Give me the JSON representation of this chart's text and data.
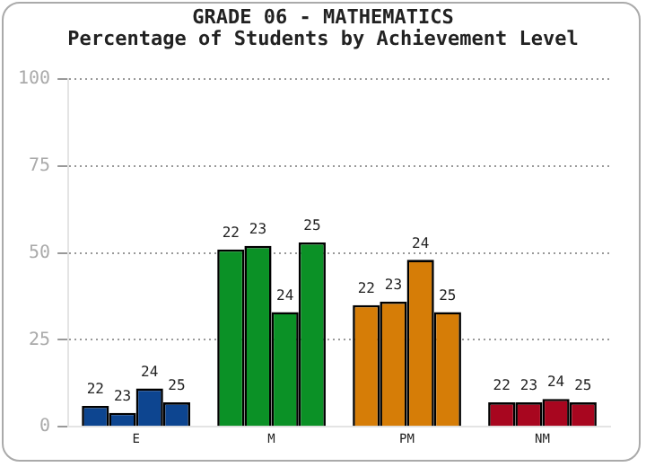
{
  "chart_data": {
    "type": "bar",
    "title": "GRADE 06 - MATHEMATICS",
    "subtitle": "Percentage of Students by Achievement Level",
    "categories": [
      "E",
      "M",
      "PM",
      "NM"
    ],
    "series": [
      {
        "name": "22",
        "colors": [
          "#0d4590",
          "#0b9126",
          "#d67d07",
          "#a8061f"
        ],
        "values": [
          6,
          51,
          35,
          7
        ]
      },
      {
        "name": "23",
        "colors": [
          "#0d4590",
          "#0b9126",
          "#d67d07",
          "#a8061f"
        ],
        "values": [
          4,
          52,
          36,
          7
        ]
      },
      {
        "name": "24",
        "colors": [
          "#0d4590",
          "#0b9126",
          "#d67d07",
          "#a8061f"
        ],
        "values": [
          11,
          33,
          48,
          8
        ]
      },
      {
        "name": "25",
        "colors": [
          "#0d4590",
          "#0b9126",
          "#d67d07",
          "#a8061f"
        ],
        "values": [
          7,
          53,
          33,
          7
        ]
      }
    ],
    "ylim": [
      0,
      100
    ],
    "yticks": [
      0,
      25,
      50,
      75,
      100
    ],
    "grid": "y",
    "legend": false
  }
}
